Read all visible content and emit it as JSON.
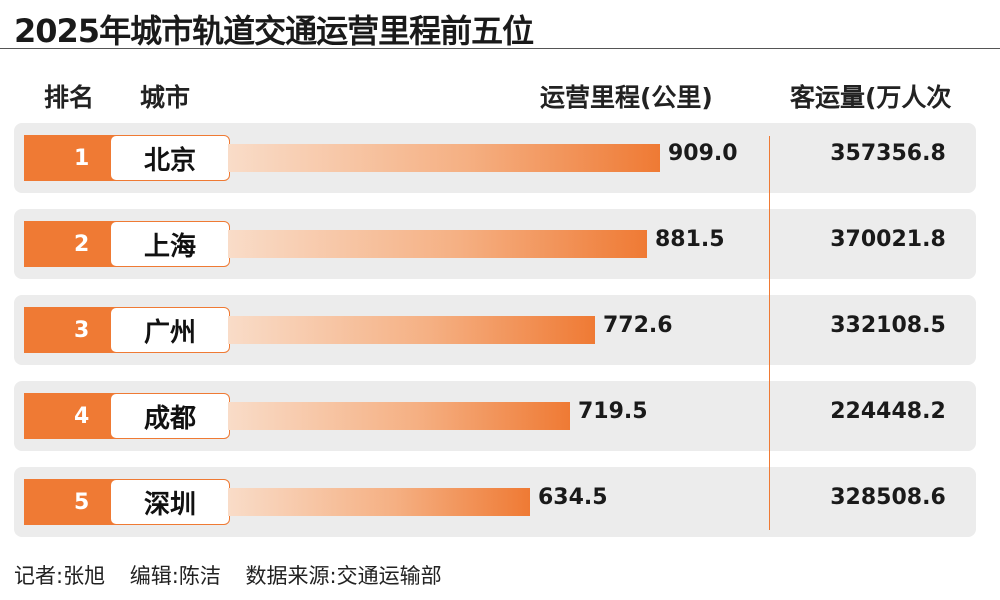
{
  "title": "2025年城市轨道交通运营里程前五位",
  "headers": {
    "rank": "排名",
    "city": "城市",
    "mileage": "运营里程(公里)",
    "passengers": "客运量(万人次"
  },
  "chart_data": {
    "type": "bar",
    "title": "2025年城市轨道交通运营里程前五位",
    "categories": [
      "北京",
      "上海",
      "广州",
      "成都",
      "深圳"
    ],
    "ranks": [
      "1",
      "2",
      "3",
      "4",
      "5"
    ],
    "series": [
      {
        "name": "运营里程(公里)",
        "values": [
          909.0,
          881.5,
          772.6,
          719.5,
          634.5
        ],
        "labels": [
          "909.0",
          "881.5",
          "772.6",
          "719.5",
          "634.5"
        ]
      },
      {
        "name": "客运量(万人次",
        "values": [
          357356.8,
          370021.8,
          332108.5,
          224448.2,
          328508.6
        ],
        "labels": [
          "357356.8",
          "370021.8",
          "332108.5",
          "224448.2",
          "328508.6"
        ]
      }
    ],
    "xlim": [
      0,
      909.0
    ],
    "bar_color": "#ef7a34",
    "grid": false
  },
  "footer": {
    "reporter": "记者:张旭",
    "editor": "编辑:陈洁",
    "source": "数据来源:交通运输部"
  }
}
